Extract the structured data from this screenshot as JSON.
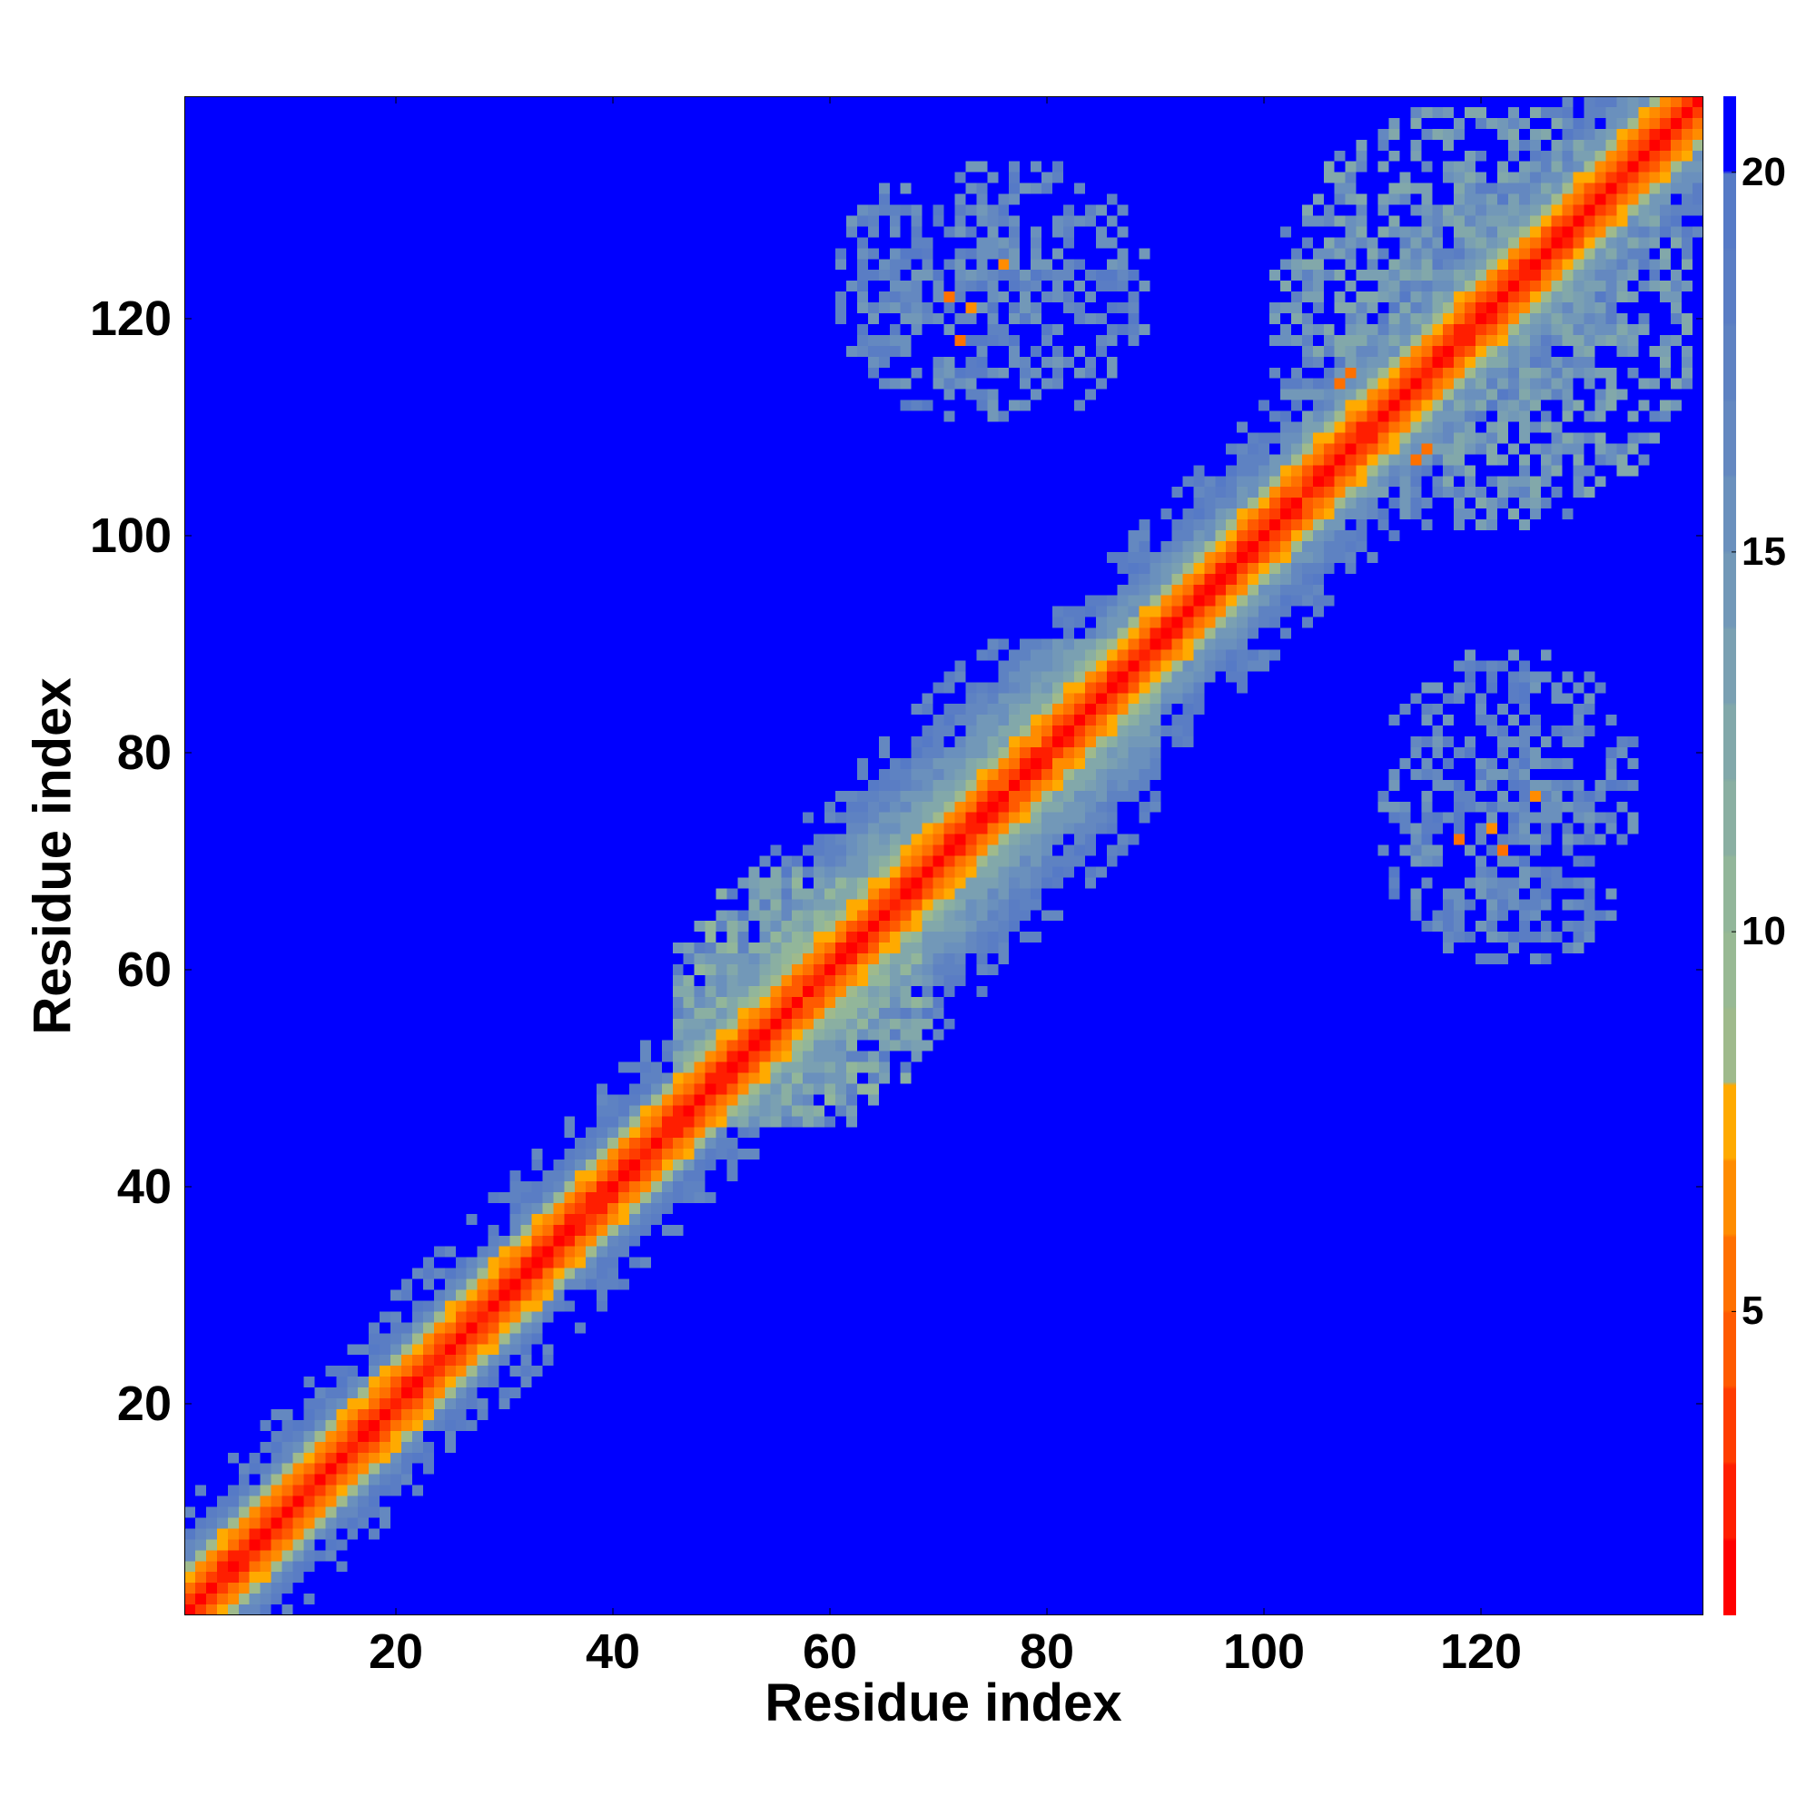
{
  "chart_data": {
    "type": "heatmap",
    "title": "",
    "xlabel": "Residue index",
    "ylabel": "Residue index",
    "n_residues": 140,
    "xlim": [
      1,
      140
    ],
    "ylim": [
      1,
      140
    ],
    "x_ticks": [
      20,
      40,
      60,
      80,
      100,
      120
    ],
    "y_ticks": [
      20,
      40,
      60,
      80,
      100,
      120
    ],
    "colorbar": {
      "range": [
        1,
        21
      ],
      "ticks": [
        5,
        10,
        15,
        20
      ],
      "levels": [
        {
          "upper": 2,
          "color": "#ff0000"
        },
        {
          "upper": 3,
          "color": "#ff1e00"
        },
        {
          "upper": 4,
          "color": "#ff3c00"
        },
        {
          "upper": 5,
          "color": "#ff5a00"
        },
        {
          "upper": 6,
          "color": "#ff7000"
        },
        {
          "upper": 7,
          "color": "#ff8c00"
        },
        {
          "upper": 8,
          "color": "#ffaa00"
        },
        {
          "upper": 9,
          "color": "#9fba8c"
        },
        {
          "upper": 10,
          "color": "#98b994"
        },
        {
          "upper": 11,
          "color": "#92b69a"
        },
        {
          "upper": 12,
          "color": "#8aafa2"
        },
        {
          "upper": 13,
          "color": "#82a8aa"
        },
        {
          "upper": 14,
          "color": "#7aa0b2"
        },
        {
          "upper": 15,
          "color": "#7298b8"
        },
        {
          "upper": 16,
          "color": "#6a90bd"
        },
        {
          "upper": 17,
          "color": "#6488c0"
        },
        {
          "upper": 18,
          "color": "#5e82c2"
        },
        {
          "upper": 19,
          "color": "#5a7dc4"
        },
        {
          "upper": 20,
          "color": "#567ac6"
        },
        {
          "upper": 21,
          "color": "#0000ff"
        }
      ]
    },
    "background_color": "#0000ff",
    "diagonal_profile": [
      {
        "offset": 0,
        "value": 1.5
      },
      {
        "offset": 1,
        "value": 3.5
      },
      {
        "offset": 2,
        "value": 5.5
      },
      {
        "offset": 3,
        "value": 7.0
      },
      {
        "offset": 4,
        "value": 8.5
      }
    ],
    "diagonal_band_halfwidth": [
      {
        "range": [
          1,
          45
        ],
        "halfwidth": 7
      },
      {
        "range": [
          46,
          90
        ],
        "halfwidth": 13
      },
      {
        "range": [
          91,
          140
        ],
        "halfwidth": 9
      }
    ],
    "off_diagonal_clusters": [
      {
        "x_range": [
          60,
          90
        ],
        "y_range": [
          112,
          135
        ],
        "min_value": 14,
        "density": 0.45,
        "hot_spots": [
          [
            72,
            118,
            6
          ],
          [
            73,
            121,
            7
          ],
          [
            71,
            122,
            6
          ],
          [
            76,
            125,
            7
          ]
        ]
      },
      {
        "x_range": [
          110,
          135
        ],
        "y_range": [
          60,
          90
        ],
        "min_value": 14,
        "density": 0.45,
        "hot_spots": [
          [
            118,
            72,
            6
          ],
          [
            121,
            73,
            7
          ],
          [
            122,
            71,
            6
          ],
          [
            125,
            76,
            7
          ]
        ]
      },
      {
        "x_range": [
          100,
          140
        ],
        "y_range": [
          100,
          140
        ],
        "min_value": 12,
        "density": 0.55,
        "hot_spots": [
          [
            108,
            115,
            6
          ],
          [
            114,
            107,
            6
          ],
          [
            115,
            108,
            6
          ]
        ]
      },
      {
        "x_range": [
          45,
          70
        ],
        "y_range": [
          45,
          70
        ],
        "min_value": 10,
        "density": 0.6,
        "hot_spots": []
      }
    ]
  }
}
